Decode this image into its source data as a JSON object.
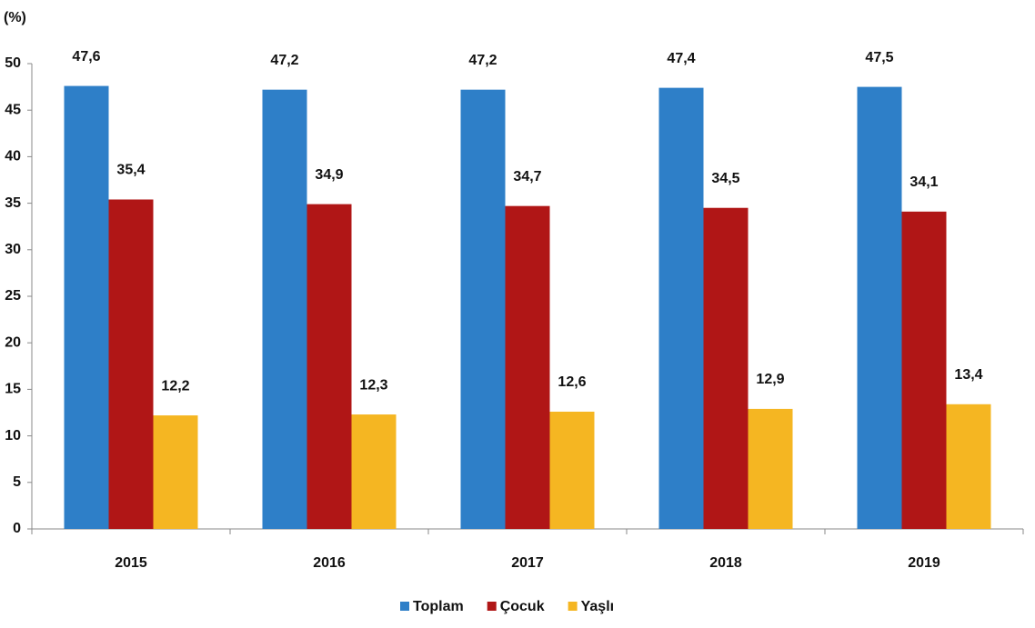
{
  "chart_data": {
    "type": "bar",
    "y_label": "(%)",
    "categories": [
      "2015",
      "2016",
      "2017",
      "2018",
      "2019"
    ],
    "series": [
      {
        "name": "Toplam",
        "color": "#2e7fc8",
        "values": [
          47.6,
          47.2,
          47.2,
          47.4,
          47.5
        ],
        "value_labels": [
          "47,6",
          "47,2",
          "47,2",
          "47,4",
          "47,5"
        ]
      },
      {
        "name": "Çocuk",
        "color": "#b01616",
        "values": [
          35.4,
          34.9,
          34.7,
          34.5,
          34.1
        ],
        "value_labels": [
          "35,4",
          "34,9",
          "34,7",
          "34,5",
          "34,1"
        ]
      },
      {
        "name": "Yaşlı",
        "color": "#f5b622",
        "values": [
          12.2,
          12.3,
          12.6,
          12.9,
          13.4
        ],
        "value_labels": [
          "12,2",
          "12,3",
          "12,6",
          "12,9",
          "13,4"
        ]
      }
    ],
    "ylim": [
      0,
      50
    ],
    "yticks": [
      0,
      5,
      10,
      15,
      20,
      25,
      30,
      35,
      40,
      45,
      50
    ],
    "grid": false,
    "legend": "bottom"
  }
}
